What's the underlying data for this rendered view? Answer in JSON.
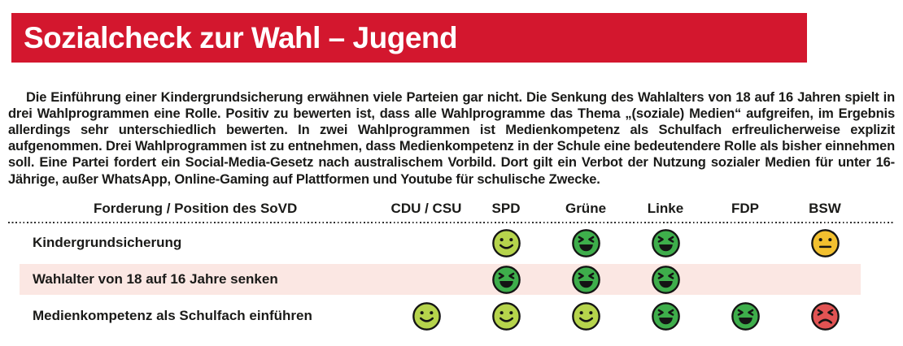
{
  "header": {
    "title": "Sozialcheck zur Wahl – Jugend",
    "bg_color": "#d3172e",
    "text_color": "#ffffff"
  },
  "intro": {
    "text": "Die Einführung einer Kindergrundsicherung erwähnen viele Parteien gar nicht. Die Senkung des Wahlalters von 18 auf 16 Jahren spielt in drei Wahlprogrammen eine Rolle. Positiv zu bewerten ist, dass alle Wahlprogramme das Thema „(soziale) Medien“ aufgreifen, im Ergebnis allerdings sehr unterschiedlich bewerten. In zwei Wahlprogrammen ist Medienkompetenz als Schulfach erfreulicherweise explizit aufgenommen. Drei Wahlprogrammen ist zu entnehmen, dass Medienkompetenz in der Schule eine bedeutendere Rolle als bisher einnehmen soll. Eine Partei fordert ein Social-Media-Gesetz nach australischem Vorbild. Dort gilt ein Verbot der Nutzung sozialer Medien für unter 16-Jährige, außer WhatsApp, Online-Gaming auf Plattformen und Youtube für schulische Zwecke."
  },
  "table": {
    "label_header": "Forderung / Position des SoVD",
    "party_headers": [
      "CDU / CSU",
      "SPD",
      "Grüne",
      "Linke",
      "FDP",
      "BSW"
    ],
    "rows": [
      {
        "label": "Kindergrundsicherung",
        "highlight": false,
        "ratings": [
          null,
          "smile",
          "laugh",
          "laugh",
          null,
          "neutral"
        ]
      },
      {
        "label": "Wahlalter von 18 auf 16 Jahre senken",
        "highlight": true,
        "ratings": [
          null,
          "laugh",
          "laugh",
          "laugh",
          null,
          null
        ]
      },
      {
        "label": "Medienkompetenz als Schulfach einführen",
        "highlight": false,
        "ratings": [
          "smile",
          "smile",
          "smile",
          "laugh",
          "laugh",
          "angry"
        ]
      }
    ]
  },
  "rating_colors": {
    "smile": "#b6d44c",
    "laugh": "#3eae4b",
    "neutral": "#f2c02f",
    "angry": "#e15353"
  },
  "highlight_color": "#fbe7e3",
  "dot_line_color": "#2e2e2e"
}
